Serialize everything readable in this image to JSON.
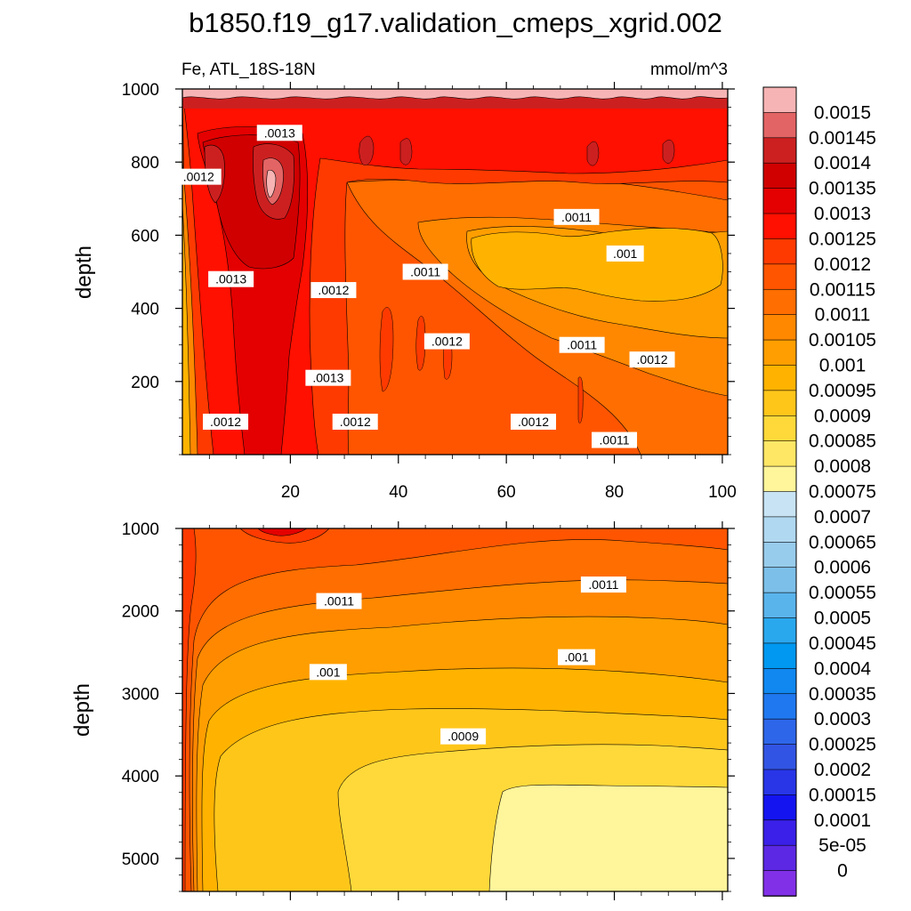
{
  "title": "b1850.f19_g17.validation_cmeps_xgrid.002",
  "subtitle_left": "Fe, ATL_18S-18N",
  "subtitle_right": "mmol/m^3",
  "chart_data": {
    "type": "heatmap",
    "upper_panel": {
      "ylabel": "depth",
      "ylim": [
        1000,
        0
      ],
      "xlim": [
        0,
        101
      ],
      "yticks": [
        200,
        400,
        600,
        800,
        1000
      ],
      "xticks": [
        20,
        40,
        60,
        80,
        100
      ],
      "contour_labels": [
        {
          "text": ".0012",
          "x": 8,
          "y": 90
        },
        {
          "text": ".0012",
          "x": 32,
          "y": 90
        },
        {
          "text": ".0012",
          "x": 65,
          "y": 90
        },
        {
          "text": ".0011",
          "x": 80,
          "y": 40
        },
        {
          "text": ".0013",
          "x": 27,
          "y": 210
        },
        {
          "text": ".0012",
          "x": 49,
          "y": 310
        },
        {
          "text": ".0011",
          "x": 74,
          "y": 300
        },
        {
          "text": ".0012",
          "x": 87,
          "y": 260
        },
        {
          "text": ".0013",
          "x": 9,
          "y": 480
        },
        {
          "text": ".0012",
          "x": 28,
          "y": 450
        },
        {
          "text": ".0011",
          "x": 45,
          "y": 500
        },
        {
          "text": ".001",
          "x": 82,
          "y": 550
        },
        {
          "text": ".0011",
          "x": 73,
          "y": 650
        },
        {
          "text": ".0012",
          "x": 3,
          "y": 760
        },
        {
          "text": ".0013",
          "x": 18,
          "y": 880
        }
      ]
    },
    "lower_panel": {
      "ylabel": "depth",
      "ylim": [
        1000,
        5400
      ],
      "xlim": [
        0,
        101
      ],
      "yticks": [
        1000,
        2000,
        3000,
        4000,
        5000
      ],
      "contour_labels": [
        {
          "text": ".0011",
          "x": 29,
          "y": 1880
        },
        {
          "text": ".0011",
          "x": 78,
          "y": 1680
        },
        {
          "text": ".001",
          "x": 27,
          "y": 2740
        },
        {
          "text": ".001",
          "x": 73,
          "y": 2560
        },
        {
          "text": ".0009",
          "x": 52,
          "y": 3520
        }
      ]
    },
    "colorbar": {
      "labels": [
        "0.0015",
        "0.00145",
        "0.0014",
        "0.00135",
        "0.0013",
        "0.00125",
        "0.0012",
        "0.00115",
        "0.0011",
        "0.00105",
        "0.001",
        "0.00095",
        "0.0009",
        "0.00085",
        "0.0008",
        "0.00075",
        "0.0007",
        "0.00065",
        "0.0006",
        "0.00055",
        "0.0005",
        "0.00045",
        "0.0004",
        "0.00035",
        "0.0003",
        "0.00025",
        "0.0002",
        "0.00015",
        "0.0001",
        "5e-05",
        "0"
      ],
      "colors": [
        "#f7b4b4",
        "#e36464",
        "#cc2020",
        "#d00000",
        "#e40000",
        "#ff1000",
        "#ff3a00",
        "#ff5500",
        "#ff6e00",
        "#ff8800",
        "#ff9e00",
        "#ffb300",
        "#ffc61a",
        "#ffd93a",
        "#ffe766",
        "#fff59a",
        "#c8e4f4",
        "#b0d8f0",
        "#98ccec",
        "#7cc0ea",
        "#5ab4ec",
        "#2aa8ee",
        "#0098f0",
        "#1088f0",
        "#2078f0",
        "#2e66ea",
        "#3254e4",
        "#2836e8",
        "#1414f0",
        "#3a20e8",
        "#5c28e4",
        "#8230e8"
      ]
    }
  }
}
